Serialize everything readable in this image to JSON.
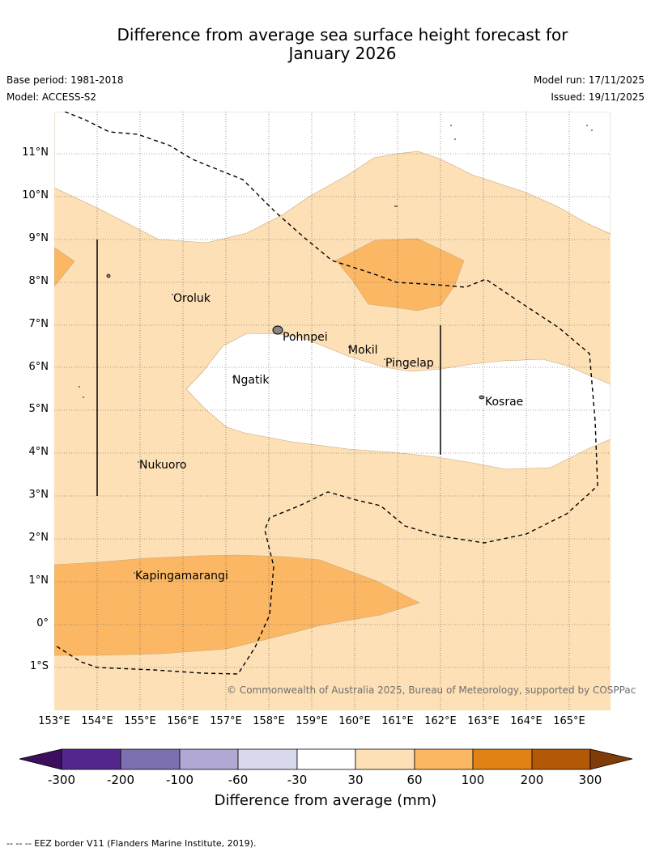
{
  "header": {
    "title_line1": "Difference from average sea surface height forecast for",
    "title_line2": "January 2026",
    "base_period": "Base period: 1981-2018",
    "model": "Model: ACCESS-S2",
    "model_run": "Model run: 17/11/2025",
    "issued": "Issued: 19/11/2025"
  },
  "map": {
    "lat_labels": [
      "11°N",
      "10°N",
      "9°N",
      "8°N",
      "7°N",
      "6°N",
      "5°N",
      "4°N",
      "3°N",
      "2°N",
      "1°N",
      "0°",
      "1°S"
    ],
    "lon_labels": [
      "153°E",
      "154°E",
      "155°E",
      "156°E",
      "157°E",
      "158°E",
      "159°E",
      "160°E",
      "161°E",
      "162°E",
      "163°E",
      "164°E",
      "165°E"
    ],
    "places": [
      "Oroluk",
      "Pohnpei",
      "Mokil",
      "Pingelap",
      "Ngatik",
      "Kosrae",
      "Nukuoro",
      "Kapingamarangi"
    ],
    "copyright": "© Commonwealth of Australia 2025, Bureau of Meteorology, supported by COSPPac"
  },
  "colorbar": {
    "ticks": [
      "-300",
      "-200",
      "-100",
      "-60",
      "-30",
      "30",
      "60",
      "100",
      "200",
      "300"
    ],
    "colors": [
      "#3b0f5e",
      "#54278f",
      "#7b6fb0",
      "#b1a9d3",
      "#d9d9ed",
      "#ffffff",
      "#fde0b6",
      "#fbb763",
      "#e08214",
      "#b35806",
      "#7f3b08"
    ],
    "title": "Difference from average (mm)"
  },
  "footer": {
    "eez_note": "--  --  -- EEZ border V11 (Flanders Marine Institute, 2019)."
  }
}
